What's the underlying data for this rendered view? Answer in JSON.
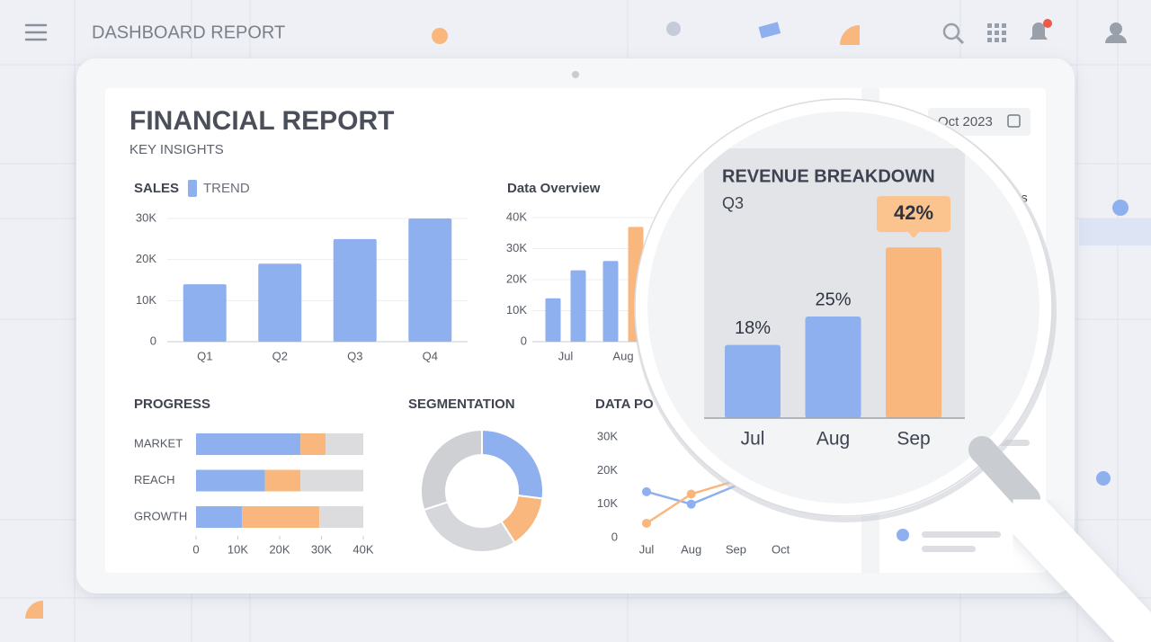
{
  "header": {
    "title": "DASHBOARD REPORT"
  },
  "report": {
    "title": "FINANCIAL REPORT",
    "subtitle": "KEY INSIGHTS",
    "date": "Oct 2023",
    "side_label": "gs"
  },
  "chart_data": [
    {
      "type": "bar",
      "title": "SALES",
      "legend": "TREND",
      "color": "#8fb0ee",
      "grid": true,
      "categories": [
        "Q1",
        "Q2",
        "Q3",
        "Q4"
      ],
      "values": [
        14000,
        19000,
        25000,
        30000
      ],
      "ylim": [
        0,
        30000
      ],
      "yticks": [
        0,
        {
          "value": 10000,
          "label": "10K"
        },
        {
          "value": 20000,
          "label": "20K"
        },
        {
          "value": 30000,
          "label": "30K"
        }
      ]
    },
    {
      "type": "bar",
      "title": "Data Overview",
      "grid": true,
      "categories": [
        "Jul",
        null,
        "Aug",
        null
      ],
      "values": [
        14000,
        23000,
        26000,
        37000
      ],
      "colors": [
        "#8fb0ee",
        "#8fb0ee",
        "#8fb0ee",
        "#f9b77d"
      ],
      "ylim": [
        0,
        40000
      ],
      "yticks": [
        0,
        {
          "value": 10000,
          "label": "10K"
        },
        {
          "value": 20000,
          "label": "20K"
        },
        {
          "value": 30000,
          "label": "30K"
        },
        {
          "value": 40000,
          "label": "40K"
        }
      ]
    },
    {
      "type": "bar",
      "horizontal": true,
      "stacked": true,
      "title": "PROGRESS",
      "categories": [
        "MARKET",
        "REACH",
        "GROWTH"
      ],
      "series": [
        {
          "color": "#8fb0ee",
          "values": [
            25000,
            16500,
            11000
          ]
        },
        {
          "color": "#f9b77d",
          "values": [
            6000,
            8500,
            18500
          ]
        },
        {
          "color": "#dcdcde",
          "values": [
            9000,
            15000,
            10500
          ]
        }
      ],
      "xlim": [
        0,
        40000
      ],
      "xticks": [
        0,
        {
          "value": 10000,
          "label": "10K"
        },
        {
          "value": 20000,
          "label": "20K"
        },
        {
          "value": 30000,
          "label": "30K"
        },
        {
          "value": 40000,
          "label": "40K"
        }
      ]
    },
    {
      "type": "pie",
      "donut": true,
      "title": "SEGMENTATION",
      "values": [
        27,
        14,
        29,
        30
      ],
      "colors": [
        "#8fb0ee",
        "#f9b77d",
        "#d6d7da",
        "#cfd0d3"
      ]
    },
    {
      "type": "line",
      "title": "DATA PO",
      "categories": [
        "Jul",
        "Aug",
        "Sep",
        "Oct"
      ],
      "series": [
        {
          "color": "#8fb0ee",
          "values": [
            13700,
            10000,
            15500,
            null
          ]
        },
        {
          "color": "#f9b77d",
          "values": [
            4300,
            13000,
            17000,
            null
          ]
        }
      ],
      "ylim": [
        0,
        30000
      ],
      "yticks": [
        0,
        {
          "value": 10000,
          "label": "10K"
        },
        {
          "value": 20000,
          "label": "20K"
        },
        {
          "value": 30000,
          "label": "30K"
        }
      ]
    },
    {
      "type": "bar",
      "title": "REVENUE BREAKDOWN",
      "subtitle": "Q3",
      "categories": [
        "Jul",
        "Aug",
        "Sep"
      ],
      "values": [
        18,
        25,
        42
      ],
      "value_labels": [
        "18%",
        "25%",
        "42%"
      ],
      "colors": [
        "#8fb0ee",
        "#8fb0ee",
        "#f9b77d"
      ]
    }
  ]
}
